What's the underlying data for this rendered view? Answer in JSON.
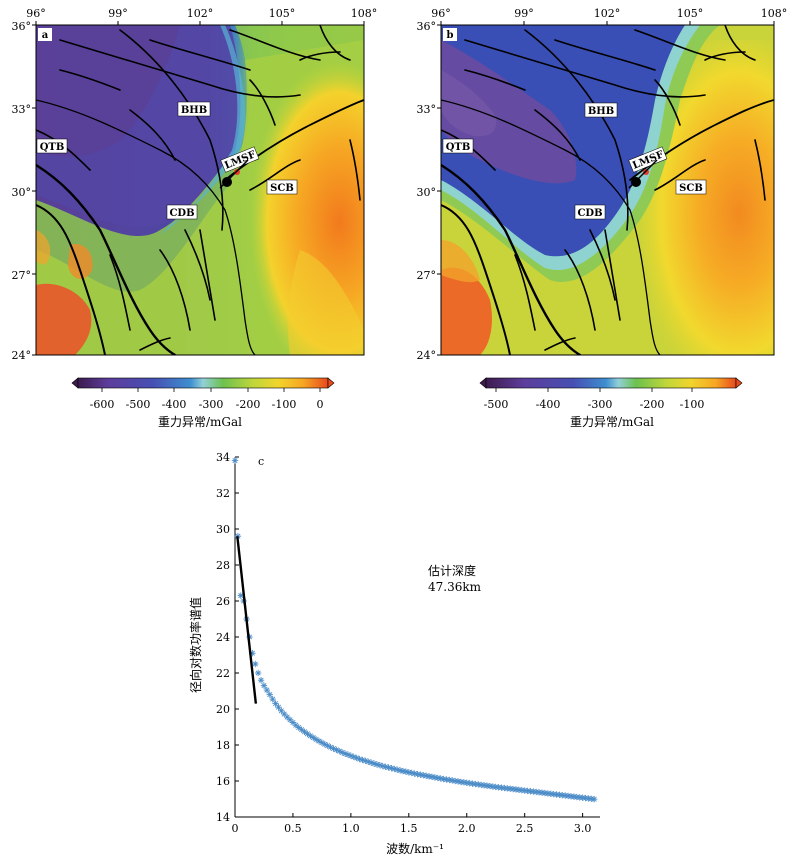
{
  "map_a": {
    "panel_label": "a",
    "lon_ticks": [
      "96°",
      "99°",
      "102°",
      "105°",
      "108°"
    ],
    "lat_ticks": [
      "36°",
      "33°",
      "30°",
      "27°",
      "24°"
    ],
    "labels": {
      "bhb": "BHB",
      "qtb": "QTB",
      "cdb": "CDB",
      "scb": "SCB",
      "lmsf": "LMSF"
    },
    "colorbar": {
      "ticks": [
        "-600",
        "-500",
        "-400",
        "-300",
        "-200",
        "-100",
        "0"
      ],
      "title": "重力异常/mGal"
    }
  },
  "map_b": {
    "panel_label": "b",
    "lon_ticks": [
      "96°",
      "99°",
      "102°",
      "105°",
      "108°"
    ],
    "lat_ticks": [
      "36°",
      "33°",
      "30°",
      "27°",
      "24°"
    ],
    "labels": {
      "bhb": "BHB",
      "qtb": "QTB",
      "cdb": "CDB",
      "scb": "SCB",
      "lmsf": "LMSF"
    },
    "colorbar": {
      "ticks": [
        "-500",
        "-400",
        "-300",
        "-200",
        "-100"
      ],
      "title": "重力异常/mGal"
    }
  },
  "chart_data": {
    "type": "scatter",
    "panel_label": "c",
    "xlabel": "波数/km⁻¹",
    "ylabel": "径向对数功率谱值",
    "xlim": [
      0,
      3.15
    ],
    "ylim": [
      14,
      34
    ],
    "xticks": [
      "0",
      "0.5",
      "1.0",
      "1.5",
      "2.0",
      "2.5",
      "3.0"
    ],
    "yticks": [
      "14",
      "16",
      "18",
      "20",
      "22",
      "24",
      "26",
      "28",
      "30",
      "32",
      "34"
    ],
    "marker": "asterisk",
    "color": "#4a8bc7",
    "annotation": {
      "line1": "估计深度",
      "line2": "47.36km"
    },
    "points": [
      [
        0.0,
        33.8
      ],
      [
        0.025,
        29.6
      ],
      [
        0.05,
        26.3
      ],
      [
        0.075,
        26.0
      ],
      [
        0.1,
        25.0
      ],
      [
        0.125,
        24.0
      ],
      [
        0.15,
        23.1
      ],
      [
        0.175,
        22.5
      ],
      [
        0.2,
        22.0
      ],
      [
        0.225,
        21.6
      ],
      [
        0.25,
        21.3
      ],
      [
        0.275,
        21.05
      ],
      [
        0.3,
        20.8
      ],
      [
        0.325,
        20.55
      ],
      [
        0.35,
        20.3
      ],
      [
        0.375,
        20.1
      ],
      [
        0.4,
        19.9
      ],
      [
        0.425,
        19.72
      ],
      [
        0.45,
        19.55
      ],
      [
        0.475,
        19.4
      ],
      [
        0.5,
        19.25
      ],
      [
        0.525,
        19.1
      ],
      [
        0.55,
        18.97
      ],
      [
        0.575,
        18.85
      ],
      [
        0.6,
        18.73
      ],
      [
        0.625,
        18.62
      ],
      [
        0.65,
        18.51
      ],
      [
        0.675,
        18.41
      ],
      [
        0.7,
        18.31
      ],
      [
        0.725,
        18.22
      ],
      [
        0.75,
        18.13
      ],
      [
        0.775,
        18.04
      ],
      [
        0.8,
        17.96
      ],
      [
        0.825,
        17.88
      ],
      [
        0.85,
        17.8
      ],
      [
        0.875,
        17.73
      ],
      [
        0.9,
        17.66
      ],
      [
        0.925,
        17.59
      ],
      [
        0.95,
        17.52
      ],
      [
        0.975,
        17.46
      ],
      [
        1.0,
        17.4
      ],
      [
        1.025,
        17.34
      ],
      [
        1.05,
        17.28
      ],
      [
        1.075,
        17.22
      ],
      [
        1.1,
        17.17
      ],
      [
        1.125,
        17.12
      ],
      [
        1.15,
        17.07
      ],
      [
        1.175,
        17.02
      ],
      [
        1.2,
        16.97
      ],
      [
        1.225,
        16.92
      ],
      [
        1.25,
        16.88
      ],
      [
        1.275,
        16.83
      ],
      [
        1.3,
        16.79
      ],
      [
        1.325,
        16.75
      ],
      [
        1.35,
        16.71
      ],
      [
        1.375,
        16.67
      ],
      [
        1.4,
        16.63
      ],
      [
        1.425,
        16.59
      ],
      [
        1.45,
        16.55
      ],
      [
        1.475,
        16.52
      ],
      [
        1.5,
        16.48
      ],
      [
        1.525,
        16.45
      ],
      [
        1.55,
        16.41
      ],
      [
        1.575,
        16.38
      ],
      [
        1.6,
        16.35
      ],
      [
        1.625,
        16.32
      ],
      [
        1.65,
        16.29
      ],
      [
        1.675,
        16.26
      ],
      [
        1.7,
        16.23
      ],
      [
        1.725,
        16.2
      ],
      [
        1.75,
        16.17
      ],
      [
        1.775,
        16.14
      ],
      [
        1.8,
        16.11
      ],
      [
        1.825,
        16.08
      ],
      [
        1.85,
        16.06
      ],
      [
        1.875,
        16.03
      ],
      [
        1.9,
        16.0
      ],
      [
        1.925,
        15.98
      ],
      [
        1.95,
        15.95
      ],
      [
        1.975,
        15.93
      ],
      [
        2.0,
        15.9
      ],
      [
        2.025,
        15.88
      ],
      [
        2.05,
        15.85
      ],
      [
        2.075,
        15.83
      ],
      [
        2.1,
        15.81
      ],
      [
        2.125,
        15.78
      ],
      [
        2.15,
        15.76
      ],
      [
        2.175,
        15.74
      ],
      [
        2.2,
        15.72
      ],
      [
        2.225,
        15.69
      ],
      [
        2.25,
        15.67
      ],
      [
        2.275,
        15.65
      ],
      [
        2.3,
        15.63
      ],
      [
        2.325,
        15.61
      ],
      [
        2.35,
        15.59
      ],
      [
        2.375,
        15.57
      ],
      [
        2.4,
        15.55
      ],
      [
        2.425,
        15.53
      ],
      [
        2.45,
        15.51
      ],
      [
        2.475,
        15.49
      ],
      [
        2.5,
        15.47
      ],
      [
        2.525,
        15.45
      ],
      [
        2.55,
        15.43
      ],
      [
        2.575,
        15.41
      ],
      [
        2.6,
        15.39
      ],
      [
        2.625,
        15.37
      ],
      [
        2.65,
        15.35
      ],
      [
        2.675,
        15.33
      ],
      [
        2.7,
        15.31
      ],
      [
        2.725,
        15.29
      ],
      [
        2.75,
        15.27
      ],
      [
        2.775,
        15.25
      ],
      [
        2.8,
        15.23
      ],
      [
        2.825,
        15.21
      ],
      [
        2.85,
        15.19
      ],
      [
        2.875,
        15.17
      ],
      [
        2.9,
        15.15
      ],
      [
        2.925,
        15.13
      ],
      [
        2.95,
        15.11
      ],
      [
        2.975,
        15.09
      ],
      [
        3.0,
        15.07
      ],
      [
        3.025,
        15.05
      ],
      [
        3.05,
        15.03
      ],
      [
        3.075,
        15.01
      ],
      [
        3.1,
        14.99
      ]
    ],
    "fit_line": [
      [
        0.02,
        29.6
      ],
      [
        0.18,
        20.3
      ]
    ]
  }
}
